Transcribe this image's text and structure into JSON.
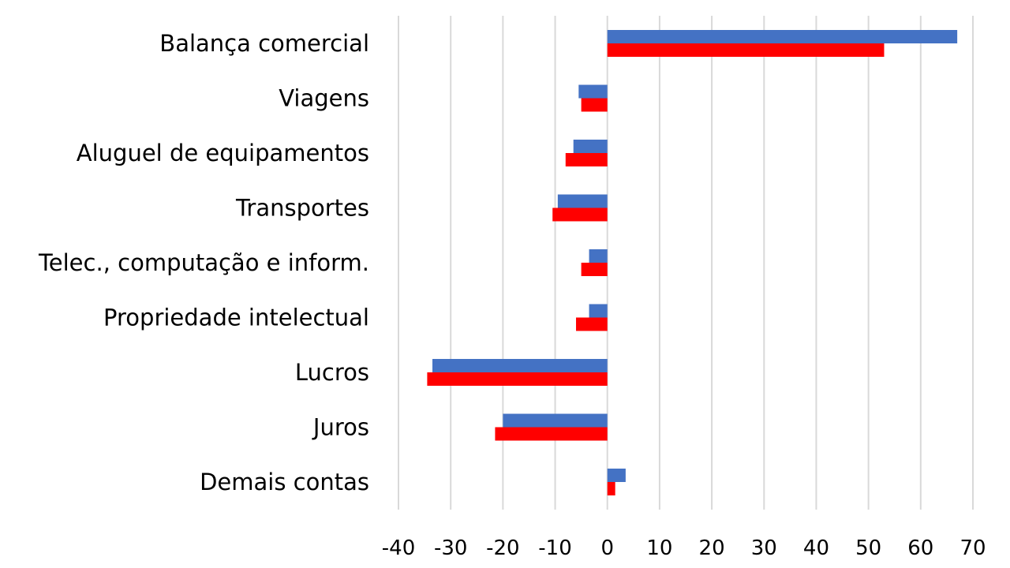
{
  "chart_data": {
    "type": "bar",
    "orientation": "horizontal",
    "categories": [
      "Balança comercial",
      "Viagens",
      "Aluguel de equipamentos",
      "Transportes",
      "Telec., computação e inform.",
      "Propriedade intelectual",
      "Lucros",
      "Juros",
      "Demais contas"
    ],
    "series": [
      {
        "color": "#4472c4",
        "values": [
          67,
          -5.5,
          -6.5,
          -9.5,
          -3.5,
          -3.5,
          -33.5,
          -20,
          3.5
        ]
      },
      {
        "color": "#ff0000",
        "values": [
          53,
          -5,
          -8,
          -10.5,
          -5,
          -6,
          -34.5,
          -21.5,
          1.5
        ]
      }
    ],
    "xlim": [
      -40,
      70
    ],
    "xticks": [
      "-40",
      "-30",
      "-20",
      "-10",
      "0",
      "10",
      "20",
      "30",
      "40",
      "50",
      "60",
      "70"
    ],
    "grid": "vertical",
    "title": "",
    "xlabel": "",
    "ylabel": ""
  }
}
